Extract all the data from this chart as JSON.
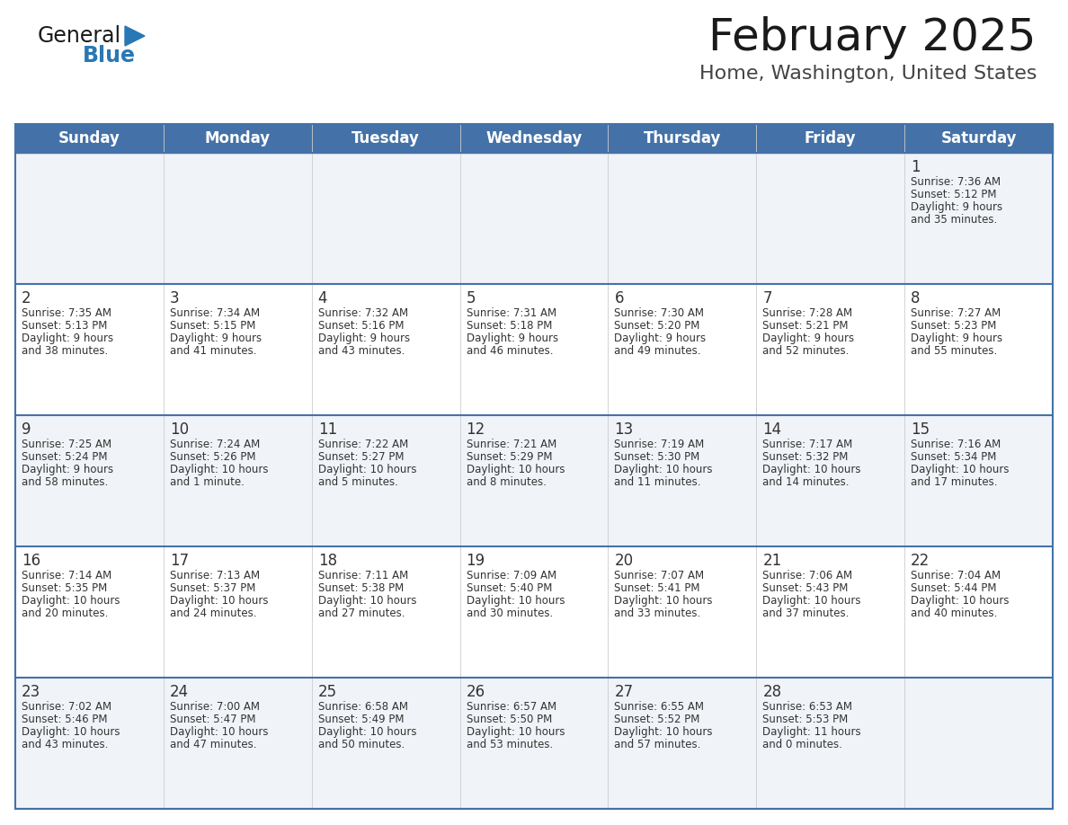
{
  "title": "February 2025",
  "subtitle": "Home, Washington, United States",
  "days_of_week": [
    "Sunday",
    "Monday",
    "Tuesday",
    "Wednesday",
    "Thursday",
    "Friday",
    "Saturday"
  ],
  "header_bg": "#4472a8",
  "header_text": "#ffffff",
  "row_bg_odd": "#f0f4f8",
  "row_bg_even": "#ffffff",
  "line_color": "#4472a8",
  "text_color": "#333333",
  "logo_general_color": "#1a1a1a",
  "logo_blue_color": "#2878b5",
  "logo_triangle_color": "#2878b5",
  "calendar_data": [
    [
      null,
      null,
      null,
      null,
      null,
      null,
      {
        "day": "1",
        "sunrise": "7:36 AM",
        "sunset": "5:12 PM",
        "daylight_line1": "Daylight: 9 hours",
        "daylight_line2": "and 35 minutes."
      }
    ],
    [
      {
        "day": "2",
        "sunrise": "7:35 AM",
        "sunset": "5:13 PM",
        "daylight_line1": "Daylight: 9 hours",
        "daylight_line2": "and 38 minutes."
      },
      {
        "day": "3",
        "sunrise": "7:34 AM",
        "sunset": "5:15 PM",
        "daylight_line1": "Daylight: 9 hours",
        "daylight_line2": "and 41 minutes."
      },
      {
        "day": "4",
        "sunrise": "7:32 AM",
        "sunset": "5:16 PM",
        "daylight_line1": "Daylight: 9 hours",
        "daylight_line2": "and 43 minutes."
      },
      {
        "day": "5",
        "sunrise": "7:31 AM",
        "sunset": "5:18 PM",
        "daylight_line1": "Daylight: 9 hours",
        "daylight_line2": "and 46 minutes."
      },
      {
        "day": "6",
        "sunrise": "7:30 AM",
        "sunset": "5:20 PM",
        "daylight_line1": "Daylight: 9 hours",
        "daylight_line2": "and 49 minutes."
      },
      {
        "day": "7",
        "sunrise": "7:28 AM",
        "sunset": "5:21 PM",
        "daylight_line1": "Daylight: 9 hours",
        "daylight_line2": "and 52 minutes."
      },
      {
        "day": "8",
        "sunrise": "7:27 AM",
        "sunset": "5:23 PM",
        "daylight_line1": "Daylight: 9 hours",
        "daylight_line2": "and 55 minutes."
      }
    ],
    [
      {
        "day": "9",
        "sunrise": "7:25 AM",
        "sunset": "5:24 PM",
        "daylight_line1": "Daylight: 9 hours",
        "daylight_line2": "and 58 minutes."
      },
      {
        "day": "10",
        "sunrise": "7:24 AM",
        "sunset": "5:26 PM",
        "daylight_line1": "Daylight: 10 hours",
        "daylight_line2": "and 1 minute."
      },
      {
        "day": "11",
        "sunrise": "7:22 AM",
        "sunset": "5:27 PM",
        "daylight_line1": "Daylight: 10 hours",
        "daylight_line2": "and 5 minutes."
      },
      {
        "day": "12",
        "sunrise": "7:21 AM",
        "sunset": "5:29 PM",
        "daylight_line1": "Daylight: 10 hours",
        "daylight_line2": "and 8 minutes."
      },
      {
        "day": "13",
        "sunrise": "7:19 AM",
        "sunset": "5:30 PM",
        "daylight_line1": "Daylight: 10 hours",
        "daylight_line2": "and 11 minutes."
      },
      {
        "day": "14",
        "sunrise": "7:17 AM",
        "sunset": "5:32 PM",
        "daylight_line1": "Daylight: 10 hours",
        "daylight_line2": "and 14 minutes."
      },
      {
        "day": "15",
        "sunrise": "7:16 AM",
        "sunset": "5:34 PM",
        "daylight_line1": "Daylight: 10 hours",
        "daylight_line2": "and 17 minutes."
      }
    ],
    [
      {
        "day": "16",
        "sunrise": "7:14 AM",
        "sunset": "5:35 PM",
        "daylight_line1": "Daylight: 10 hours",
        "daylight_line2": "and 20 minutes."
      },
      {
        "day": "17",
        "sunrise": "7:13 AM",
        "sunset": "5:37 PM",
        "daylight_line1": "Daylight: 10 hours",
        "daylight_line2": "and 24 minutes."
      },
      {
        "day": "18",
        "sunrise": "7:11 AM",
        "sunset": "5:38 PM",
        "daylight_line1": "Daylight: 10 hours",
        "daylight_line2": "and 27 minutes."
      },
      {
        "day": "19",
        "sunrise": "7:09 AM",
        "sunset": "5:40 PM",
        "daylight_line1": "Daylight: 10 hours",
        "daylight_line2": "and 30 minutes."
      },
      {
        "day": "20",
        "sunrise": "7:07 AM",
        "sunset": "5:41 PM",
        "daylight_line1": "Daylight: 10 hours",
        "daylight_line2": "and 33 minutes."
      },
      {
        "day": "21",
        "sunrise": "7:06 AM",
        "sunset": "5:43 PM",
        "daylight_line1": "Daylight: 10 hours",
        "daylight_line2": "and 37 minutes."
      },
      {
        "day": "22",
        "sunrise": "7:04 AM",
        "sunset": "5:44 PM",
        "daylight_line1": "Daylight: 10 hours",
        "daylight_line2": "and 40 minutes."
      }
    ],
    [
      {
        "day": "23",
        "sunrise": "7:02 AM",
        "sunset": "5:46 PM",
        "daylight_line1": "Daylight: 10 hours",
        "daylight_line2": "and 43 minutes."
      },
      {
        "day": "24",
        "sunrise": "7:00 AM",
        "sunset": "5:47 PM",
        "daylight_line1": "Daylight: 10 hours",
        "daylight_line2": "and 47 minutes."
      },
      {
        "day": "25",
        "sunrise": "6:58 AM",
        "sunset": "5:49 PM",
        "daylight_line1": "Daylight: 10 hours",
        "daylight_line2": "and 50 minutes."
      },
      {
        "day": "26",
        "sunrise": "6:57 AM",
        "sunset": "5:50 PM",
        "daylight_line1": "Daylight: 10 hours",
        "daylight_line2": "and 53 minutes."
      },
      {
        "day": "27",
        "sunrise": "6:55 AM",
        "sunset": "5:52 PM",
        "daylight_line1": "Daylight: 10 hours",
        "daylight_line2": "and 57 minutes."
      },
      {
        "day": "28",
        "sunrise": "6:53 AM",
        "sunset": "5:53 PM",
        "daylight_line1": "Daylight: 11 hours",
        "daylight_line2": "and 0 minutes."
      },
      null
    ]
  ]
}
